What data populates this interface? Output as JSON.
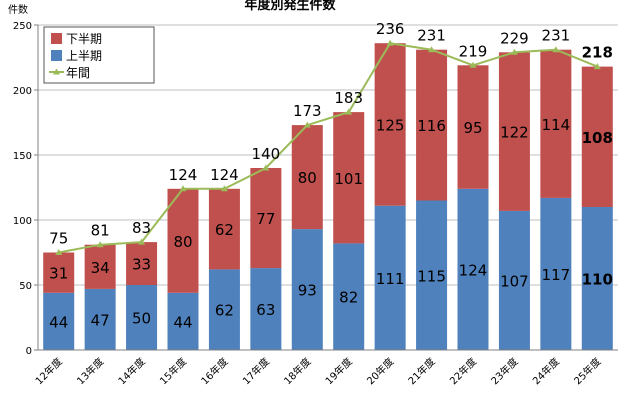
{
  "chart_data": {
    "type": "bar",
    "stacked": true,
    "title": "年度別発生件数",
    "ylabel": "件数",
    "ylim": [
      0,
      250
    ],
    "yticks": [
      0,
      50,
      100,
      150,
      200,
      250
    ],
    "grid": true,
    "legend_position": "top-left",
    "categories": [
      "12年度",
      "13年度",
      "14年度",
      "15年度",
      "16年度",
      "17年度",
      "18年度",
      "19年度",
      "20年度",
      "21年度",
      "22年度",
      "23年度",
      "24年度",
      "25年度"
    ],
    "series": [
      {
        "name": "下半期",
        "color": "#c0504d",
        "values": [
          31,
          34,
          33,
          80,
          62,
          77,
          80,
          101,
          125,
          116,
          95,
          122,
          114,
          108
        ]
      },
      {
        "name": "上半期",
        "color": "#4f81bd",
        "values": [
          44,
          47,
          50,
          44,
          62,
          63,
          93,
          82,
          111,
          115,
          124,
          107,
          117,
          110
        ]
      },
      {
        "name": "年間",
        "type": "line",
        "color": "#9bbb59",
        "values": [
          75,
          81,
          83,
          124,
          124,
          140,
          173,
          183,
          236,
          231,
          219,
          229,
          231,
          218
        ]
      }
    ],
    "highlight_last": true
  }
}
